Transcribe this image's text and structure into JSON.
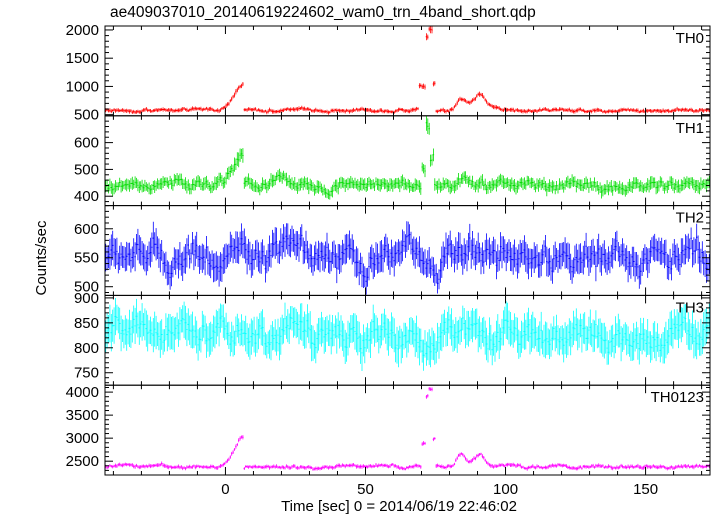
{
  "chart_data": {
    "type": "line",
    "title": "ae409037010_20140619224602_wam0_trn_4band_short.qdp",
    "xlabel": "Time [sec] 0 = 2014/06/19 22:46:02",
    "ylabel": "Counts/sec",
    "xlim": [
      -43,
      173
    ],
    "x_ticks": [
      0,
      50,
      100,
      150
    ],
    "bin_sec": 0.5,
    "panels": [
      {
        "name": "TH0",
        "color": "#ff0000",
        "ylim": [
          480,
          2070
        ],
        "y_ticks": [
          500,
          1000,
          1500,
          2000
        ],
        "baseline": 580,
        "noise": 25,
        "err": 30,
        "features": [
          {
            "type": "ramp",
            "start": -3,
            "peak": 5,
            "end": 6.5,
            "height": 450
          },
          {
            "type": "bump",
            "start": 69,
            "end": 71.5,
            "height": 400
          },
          {
            "type": "bump",
            "start": 71.5,
            "end": 72.5,
            "height": 1300
          },
          {
            "type": "bump",
            "start": 72.5,
            "end": 74,
            "height": 1450
          },
          {
            "type": "bump",
            "start": 74,
            "end": 75,
            "height": 500
          },
          {
            "type": "gauss",
            "center": 84,
            "width": 1.5,
            "height": 200
          },
          {
            "type": "gauss",
            "center": 88,
            "width": 2,
            "height": 100
          },
          {
            "type": "gauss",
            "center": 91,
            "width": 1.5,
            "height": 220
          },
          {
            "type": "gauss",
            "center": 95,
            "width": 3,
            "height": 60
          }
        ]
      },
      {
        "name": "TH1",
        "color": "#00dd00",
        "ylim": [
          365,
          700
        ],
        "y_ticks": [
          400,
          500,
          600
        ],
        "baseline": 440,
        "noise": 18,
        "err": 20,
        "features": [
          {
            "type": "ramp",
            "start": -5,
            "peak": 5,
            "end": 6.5,
            "height": 110
          },
          {
            "type": "bump",
            "start": 70,
            "end": 71.5,
            "height": 80
          },
          {
            "type": "bump",
            "start": 71.5,
            "end": 73,
            "height": 240
          },
          {
            "type": "bump",
            "start": 73,
            "end": 74.5,
            "height": 120
          },
          {
            "type": "gauss",
            "center": 86,
            "width": 2,
            "height": 15
          }
        ]
      },
      {
        "name": "TH2",
        "color": "#0000ff",
        "ylim": [
          485,
          640
        ],
        "y_ticks": [
          500,
          550,
          600
        ],
        "baseline": 552,
        "noise": 22,
        "err": 22,
        "features": []
      },
      {
        "name": "TH3",
        "color": "#00ffff",
        "ylim": [
          725,
          905
        ],
        "y_ticks": [
          750,
          800,
          850,
          900
        ],
        "baseline": 822,
        "noise": 25,
        "err": 30,
        "features": []
      },
      {
        "name": "TH0123",
        "color": "#ff00ff",
        "ylim": [
          2200,
          4150
        ],
        "y_ticks": [
          2500,
          3000,
          3500,
          4000
        ],
        "baseline": 2390,
        "noise": 35,
        "err": 35,
        "features": [
          {
            "type": "ramp",
            "start": -3,
            "peak": 5,
            "end": 6.5,
            "height": 650
          },
          {
            "type": "bump",
            "start": 70,
            "end": 71.5,
            "height": 500
          },
          {
            "type": "bump",
            "start": 71.5,
            "end": 72.5,
            "height": 1500
          },
          {
            "type": "bump",
            "start": 72.5,
            "end": 74,
            "height": 1700
          },
          {
            "type": "bump",
            "start": 74,
            "end": 75,
            "height": 600
          },
          {
            "type": "gauss",
            "center": 84,
            "width": 1.5,
            "height": 250
          },
          {
            "type": "gauss",
            "center": 88,
            "width": 2,
            "height": 120
          },
          {
            "type": "gauss",
            "center": 91,
            "width": 1.5,
            "height": 200
          }
        ]
      }
    ]
  }
}
